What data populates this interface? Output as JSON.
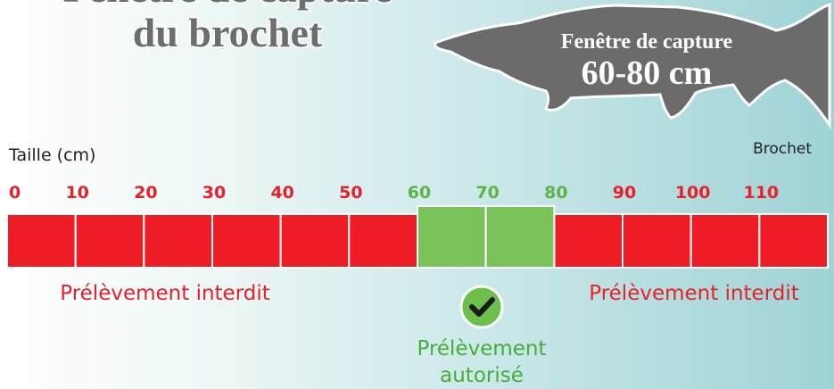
{
  "title": [
    "Fenêtre de capture",
    "du brochet"
  ],
  "fish": {
    "caption": [
      "Fenêtre de capture",
      "60-80 cm"
    ],
    "label": "Brochet"
  },
  "ruler": {
    "axis_label": "Taille (cm)",
    "ticks": [
      0,
      10,
      20,
      30,
      40,
      50,
      60,
      70,
      80,
      90,
      100,
      110
    ],
    "allowed_min": 60,
    "allowed_max": 80
  },
  "zones": {
    "left": "Prélèvement interdit",
    "right": "Prélèvement interdit",
    "allowed": [
      "Prélèvement",
      "autorisé"
    ]
  }
}
